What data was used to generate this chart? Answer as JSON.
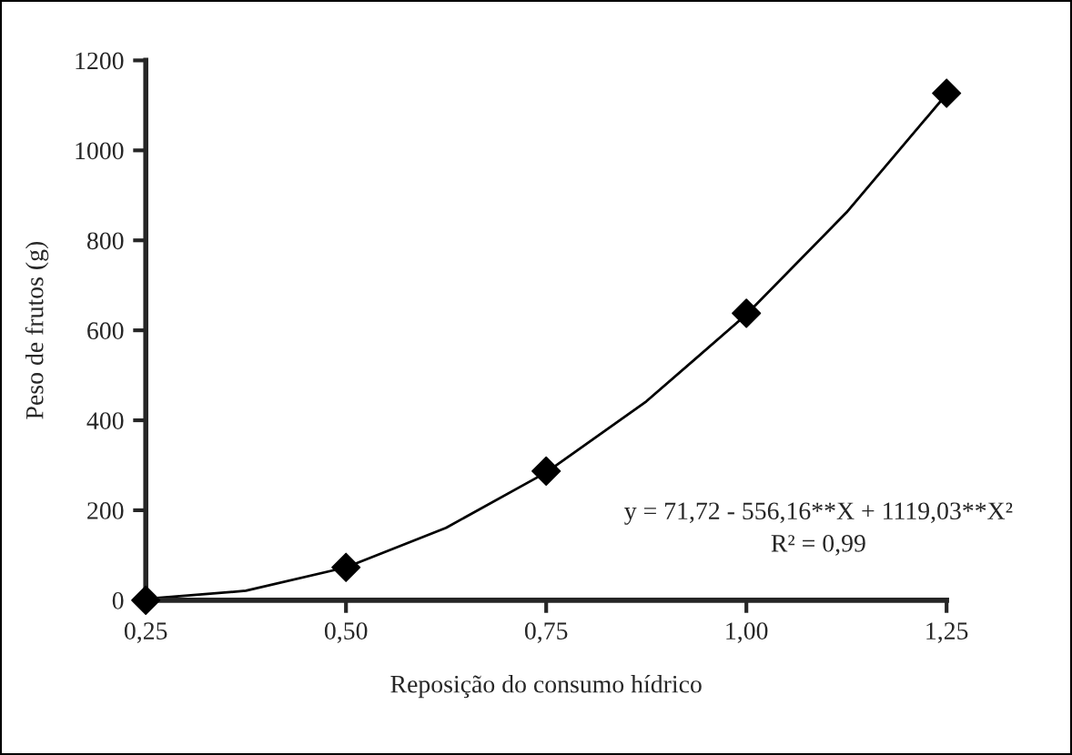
{
  "chart_data": {
    "type": "scatter",
    "xlabel": "Reposição do consumo hídrico",
    "ylabel": "Peso de frutos (g)",
    "x": [
      0.25,
      0.5,
      0.75,
      1.0,
      1.25
    ],
    "series": [
      {
        "color": "#000000",
        "marker": "diamond",
        "values": [
          0,
          73,
          287,
          638,
          1127
        ]
      },
      {
        "type": "line",
        "color": "#000000",
        "marker": "none",
        "line_style": "solid",
        "x": [
          0.25,
          0.375,
          0.5,
          0.625,
          0.75,
          0.875,
          1.0,
          1.125,
          1.25
        ],
        "values": [
          3,
          21,
          73,
          161,
          284,
          442,
          635,
          862,
          1125
        ]
      }
    ],
    "annotations": [
      "y = 71,72 - 556,16**X + 1119,03**X²",
      "R² = 0,99"
    ],
    "xlim": [
      0.25,
      1.25
    ],
    "xticks": [
      {
        "value": 0.25,
        "label": "0,25"
      },
      {
        "value": 0.5,
        "label": "0,50"
      },
      {
        "value": 0.75,
        "label": "0,75"
      },
      {
        "value": 1.0,
        "label": "1,00"
      },
      {
        "value": 1.25,
        "label": "1,25"
      }
    ],
    "ylim": [
      0,
      1200
    ],
    "yticks": [
      0,
      200,
      400,
      600,
      800,
      1000,
      1200
    ],
    "grid": false,
    "legend": false
  }
}
